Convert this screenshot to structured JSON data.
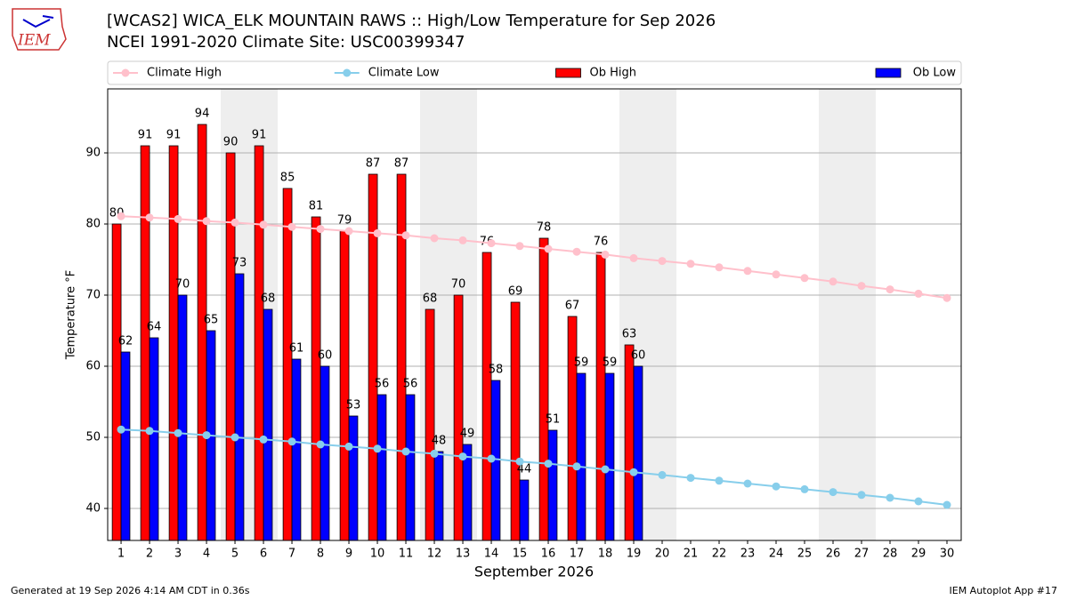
{
  "logo_text": "IEM",
  "chart_data": {
    "type": "bar",
    "title": "[WCAS2] WICA_ELK MOUNTAIN RAWS :: High/Low Temperature for Sep 2026",
    "subtitle": "NCEI 1991-2020 Climate Site: USC00399347",
    "x_label": "September 2026",
    "y_label": "Temperature °F",
    "footer_left": "Generated at 19 Sep 2026 4:14 AM CDT in 0.36s",
    "footer_right": "IEM Autoplot App #17",
    "x": [
      1,
      2,
      3,
      4,
      5,
      6,
      7,
      8,
      9,
      10,
      11,
      12,
      13,
      14,
      15,
      16,
      17,
      18,
      19,
      20,
      21,
      22,
      23,
      24,
      25,
      26,
      27,
      28,
      29,
      30
    ],
    "xlim": [
      0.53,
      30.5
    ],
    "ylim": [
      35.5,
      99
    ],
    "yticks": [
      40,
      50,
      60,
      70,
      80,
      90
    ],
    "grid": true,
    "legend": "upper center",
    "shaded_ranges": [
      [
        4.5,
        6.5
      ],
      [
        11.5,
        13.5
      ],
      [
        18.5,
        20.5
      ],
      [
        25.5,
        27.5
      ]
    ],
    "series": [
      {
        "name": "Climate High",
        "type": "line",
        "color": "#ffc0cb",
        "values": [
          81.1,
          80.9,
          80.7,
          80.4,
          80.2,
          79.9,
          79.6,
          79.3,
          79.0,
          78.7,
          78.4,
          78.0,
          77.7,
          77.3,
          76.9,
          76.5,
          76.1,
          75.7,
          75.2,
          74.8,
          74.4,
          73.9,
          73.4,
          72.9,
          72.4,
          71.9,
          71.3,
          70.8,
          70.2,
          69.6
        ]
      },
      {
        "name": "Climate Low",
        "type": "line",
        "color": "#87ceeb",
        "values": [
          51.1,
          50.9,
          50.6,
          50.3,
          50.0,
          49.7,
          49.4,
          49.0,
          48.7,
          48.4,
          48.0,
          47.7,
          47.3,
          47.0,
          46.6,
          46.3,
          45.9,
          45.5,
          45.1,
          44.7,
          44.3,
          43.9,
          43.5,
          43.1,
          42.7,
          42.3,
          41.9,
          41.5,
          41.0,
          40.5
        ]
      },
      {
        "name": "Ob High",
        "type": "bar",
        "color": "#ff0000",
        "values": [
          80,
          91,
          91,
          94,
          90,
          91,
          85,
          81,
          79,
          87,
          87,
          68,
          70,
          76,
          69,
          78,
          67,
          76,
          63,
          null,
          null,
          null,
          null,
          null,
          null,
          null,
          null,
          null,
          null,
          null
        ]
      },
      {
        "name": "Ob Low",
        "type": "bar",
        "color": "#0000ff",
        "values": [
          62,
          64,
          70,
          65,
          73,
          68,
          61,
          60,
          53,
          56,
          56,
          48,
          49,
          58,
          44,
          51,
          59,
          59,
          60,
          null,
          null,
          null,
          null,
          null,
          null,
          null,
          null,
          null,
          null,
          null
        ]
      }
    ]
  }
}
